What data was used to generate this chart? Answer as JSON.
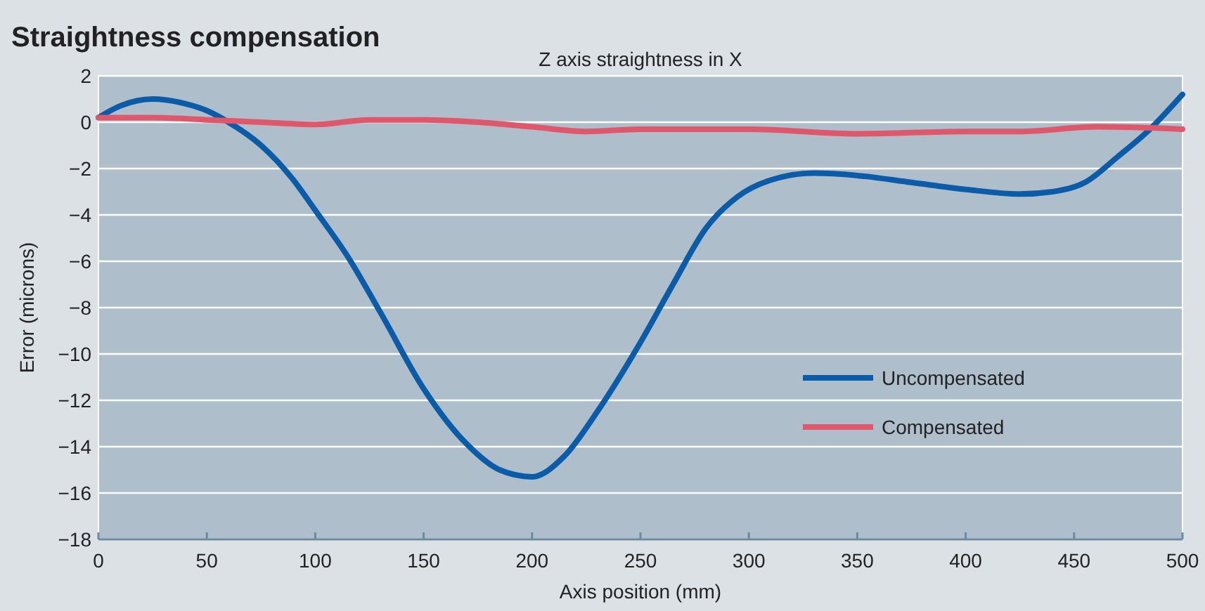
{
  "chart_data": {
    "type": "line",
    "title": "Straightness compensation",
    "subtitle": "Z axis straightness in X",
    "xlabel": "Axis position (mm)",
    "ylabel": "Error (microns)",
    "xlim": [
      0,
      500
    ],
    "xticks": [
      0,
      50,
      100,
      150,
      200,
      250,
      300,
      350,
      400,
      450,
      500
    ],
    "ylim": [
      -18,
      2
    ],
    "yticks": [
      {
        "value": 2,
        "label": "2"
      },
      {
        "value": 0,
        "label": "0"
      },
      {
        "value": -2,
        "label": "−2"
      },
      {
        "value": -4,
        "label": "−4"
      },
      {
        "value": -6,
        "label": "−6"
      },
      {
        "value": -8,
        "label": "−8"
      },
      {
        "value": -10,
        "label": "−10"
      },
      {
        "value": -12,
        "label": "−12"
      },
      {
        "value": -14,
        "label": "−14"
      },
      {
        "value": -16,
        "label": "−16"
      },
      {
        "value": -18,
        "label": "−18"
      }
    ],
    "grid": "y",
    "legend": "bottom right",
    "marker": "none",
    "line_style": "solid",
    "series": [
      {
        "name": "Uncompensated",
        "color": "#0a5ca8",
        "x": [
          0,
          10,
          25,
          40,
          50,
          60,
          75,
          90,
          100,
          115,
          130,
          150,
          170,
          185,
          200,
          215,
          230,
          250,
          265,
          280,
          295,
          310,
          330,
          350,
          375,
          400,
          425,
          440,
          455,
          470,
          485,
          500
        ],
        "values": [
          0.2,
          0.7,
          1.0,
          0.8,
          0.5,
          0.0,
          -1.0,
          -2.5,
          -3.8,
          -5.8,
          -8.2,
          -11.5,
          -13.9,
          -15.0,
          -15.3,
          -14.4,
          -12.5,
          -9.5,
          -7.0,
          -4.6,
          -3.2,
          -2.5,
          -2.2,
          -2.3,
          -2.6,
          -2.9,
          -3.1,
          -3.0,
          -2.6,
          -1.5,
          -0.3,
          1.2
        ]
      },
      {
        "name": "Compensated",
        "color": "#e0566a",
        "x": [
          0,
          25,
          50,
          75,
          100,
          125,
          150,
          175,
          200,
          225,
          250,
          300,
          350,
          400,
          425,
          460,
          500
        ],
        "values": [
          0.2,
          0.2,
          0.1,
          0.0,
          -0.1,
          0.1,
          0.1,
          0.0,
          -0.2,
          -0.4,
          -0.3,
          -0.3,
          -0.5,
          -0.4,
          -0.4,
          -0.2,
          -0.3
        ]
      }
    ]
  }
}
